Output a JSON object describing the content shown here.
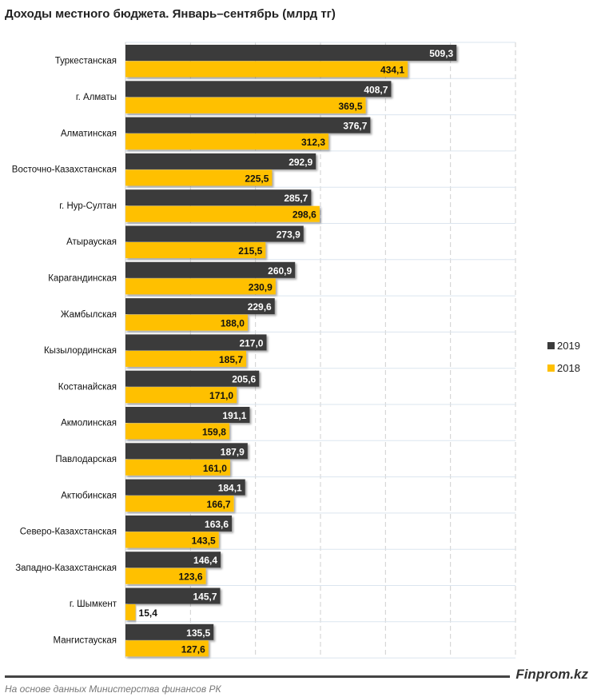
{
  "chart_data": {
    "type": "bar",
    "orientation": "horizontal",
    "title": "Доходы местного бюджета. Январь–сентябрь (млрд тг)",
    "categories": [
      "Туркестанская",
      "г. Алматы",
      "Алматинская",
      "Восточно-Казахстанская",
      "г. Нур-Султан",
      "Атырауская",
      "Карагандинская",
      "Жамбылская",
      "Кызылординская",
      "Костанайская",
      "Акмолинская",
      "Павлодарская",
      "Актюбинская",
      "Северо-Казахстанская",
      "Западно-Казахстанская",
      "г. Шымкент",
      "Мангистауская"
    ],
    "series": [
      {
        "name": "2019",
        "color": "#3b3b3b",
        "values": [
          509.3,
          408.7,
          376.7,
          292.9,
          285.7,
          273.9,
          260.9,
          229.6,
          217.0,
          205.6,
          191.1,
          187.9,
          184.1,
          163.6,
          146.4,
          145.7,
          135.5
        ],
        "labels": [
          "509,3",
          "408,7",
          "376,7",
          "292,9",
          "285,7",
          "273,9",
          "260,9",
          "229,6",
          "217,0",
          "205,6",
          "191,1",
          "187,9",
          "184,1",
          "163,6",
          "146,4",
          "145,7",
          "135,5"
        ]
      },
      {
        "name": "2018",
        "color": "#ffc000",
        "values": [
          434.1,
          369.5,
          312.3,
          225.5,
          298.6,
          215.5,
          230.9,
          188.0,
          185.7,
          171.0,
          159.8,
          161.0,
          166.7,
          143.5,
          123.6,
          15.4,
          127.6
        ],
        "labels": [
          "434,1",
          "369,5",
          "312,3",
          "225,5",
          "298,6",
          "215,5",
          "230,9",
          "188,0",
          "185,7",
          "171,0",
          "159,8",
          "161,0",
          "166,7",
          "143,5",
          "123,6",
          "15,4",
          "127,6"
        ]
      }
    ],
    "xlim": [
      0,
      600
    ],
    "grid": true,
    "legend": "right"
  },
  "footer": {
    "brand": "Finprom.kz",
    "source": "На основе данных Министерства финансов РК"
  }
}
